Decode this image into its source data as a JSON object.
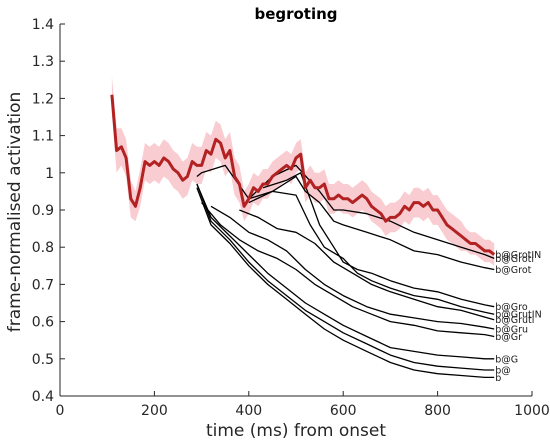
{
  "chart_data": {
    "type": "line",
    "title": "begroting",
    "xlabel": "time (ms) from onset",
    "ylabel": "frame-normalised activation",
    "xlim": [
      0,
      1000
    ],
    "ylim": [
      0.4,
      1.4
    ],
    "xticks": [
      0,
      200,
      400,
      600,
      800,
      1000
    ],
    "yticks": [
      0.4,
      0.5,
      0.6,
      0.7,
      0.8,
      0.9,
      1.0,
      1.1,
      1.2,
      1.3,
      1.4
    ],
    "xtick_labels": [
      "0",
      "200",
      "400",
      "600",
      "800",
      "1000"
    ],
    "ytick_labels": [
      "0.4",
      "0.5",
      "0.6",
      "0.7",
      "0.8",
      "0.9",
      "1",
      "1.1",
      "1.2",
      "1.3",
      "1.4"
    ],
    "grid": false,
    "colors": {
      "target_line": "#b22222",
      "target_band": "#f4a3ac",
      "competitor_lines": "#000000",
      "axes": "#262626"
    },
    "target": {
      "label": "b@GrotIN",
      "x": [
        110,
        120,
        130,
        140,
        150,
        160,
        170,
        180,
        190,
        200,
        210,
        220,
        230,
        240,
        250,
        260,
        270,
        280,
        290,
        300,
        310,
        320,
        330,
        340,
        350,
        360,
        370,
        380,
        390,
        400,
        410,
        420,
        430,
        440,
        450,
        460,
        470,
        480,
        490,
        500,
        510,
        520,
        530,
        540,
        550,
        560,
        570,
        580,
        590,
        600,
        610,
        620,
        630,
        640,
        650,
        660,
        670,
        680,
        690,
        700,
        710,
        720,
        730,
        740,
        750,
        760,
        770,
        780,
        790,
        800,
        810,
        820,
        830,
        840,
        850,
        860,
        870,
        880,
        890,
        900,
        910,
        920
      ],
      "y": [
        1.21,
        1.06,
        1.07,
        1.04,
        0.93,
        0.91,
        0.96,
        1.03,
        1.02,
        1.03,
        1.02,
        1.04,
        1.03,
        1.01,
        1.0,
        0.98,
        0.99,
        1.03,
        1.02,
        1.02,
        1.06,
        1.05,
        1.09,
        1.08,
        1.04,
        1.06,
        0.99,
        0.97,
        0.91,
        0.93,
        0.96,
        0.95,
        0.97,
        0.97,
        0.99,
        1.0,
        1.01,
        1.02,
        1.01,
        1.04,
        1.05,
        0.96,
        0.98,
        0.96,
        0.96,
        0.97,
        0.93,
        0.93,
        0.94,
        0.93,
        0.93,
        0.92,
        0.93,
        0.94,
        0.93,
        0.91,
        0.9,
        0.89,
        0.87,
        0.88,
        0.88,
        0.89,
        0.91,
        0.9,
        0.92,
        0.92,
        0.91,
        0.92,
        0.9,
        0.9,
        0.88,
        0.86,
        0.85,
        0.84,
        0.83,
        0.82,
        0.81,
        0.81,
        0.8,
        0.79,
        0.79,
        0.78
      ],
      "band": [
        0.05,
        0.06,
        0.05,
        0.05,
        0.05,
        0.04,
        0.05,
        0.05,
        0.05,
        0.05,
        0.05,
        0.05,
        0.05,
        0.05,
        0.05,
        0.05,
        0.05,
        0.05,
        0.05,
        0.05,
        0.05,
        0.05,
        0.05,
        0.05,
        0.05,
        0.05,
        0.05,
        0.05,
        0.04,
        0.04,
        0.04,
        0.04,
        0.04,
        0.04,
        0.04,
        0.04,
        0.04,
        0.04,
        0.04,
        0.04,
        0.04,
        0.04,
        0.04,
        0.04,
        0.04,
        0.04,
        0.04,
        0.04,
        0.04,
        0.04,
        0.04,
        0.04,
        0.04,
        0.04,
        0.04,
        0.04,
        0.04,
        0.04,
        0.04,
        0.04,
        0.04,
        0.04,
        0.04,
        0.04,
        0.04,
        0.04,
        0.04,
        0.04,
        0.04,
        0.04,
        0.04,
        0.04,
        0.04,
        0.04,
        0.04,
        0.03,
        0.03,
        0.03,
        0.03,
        0.03,
        0.03,
        0.03
      ]
    },
    "series": [
      {
        "label": "b@Groti",
        "x": [
          290,
          300,
          350,
          400,
          450,
          500,
          550,
          580,
          600,
          650,
          700,
          750,
          800,
          850,
          900,
          920
        ],
        "y": [
          0.99,
          1.0,
          1.02,
          0.93,
          0.99,
          1.02,
          0.95,
          0.9,
          0.9,
          0.89,
          0.87,
          0.84,
          0.82,
          0.8,
          0.78,
          0.77
        ]
      },
      {
        "label": "b@Grot",
        "x": [
          400,
          450,
          500,
          520,
          550,
          580,
          600,
          650,
          700,
          750,
          800,
          850,
          900,
          920
        ],
        "y": [
          0.92,
          0.95,
          0.99,
          0.95,
          0.92,
          0.87,
          0.86,
          0.84,
          0.82,
          0.79,
          0.78,
          0.76,
          0.745,
          0.74
        ]
      },
      {
        "label": "b@Gro",
        "x": [
          430,
          480,
          510,
          550,
          580,
          600,
          630,
          660,
          700,
          750,
          800,
          850,
          900,
          920
        ],
        "y": [
          0.96,
          0.98,
          1.0,
          0.86,
          0.8,
          0.76,
          0.74,
          0.73,
          0.71,
          0.69,
          0.68,
          0.66,
          0.645,
          0.64
        ]
      },
      {
        "label": "b@GrutIN",
        "x": [
          400,
          450,
          500,
          530,
          560,
          600,
          630,
          660,
          700,
          750,
          800,
          850,
          900,
          920
        ],
        "y": [
          0.93,
          0.95,
          0.94,
          0.86,
          0.8,
          0.77,
          0.73,
          0.71,
          0.69,
          0.67,
          0.66,
          0.64,
          0.625,
          0.62
        ]
      },
      {
        "label": "b@Gruti",
        "x": [
          380,
          420,
          460,
          500,
          540,
          580,
          620,
          660,
          700,
          750,
          800,
          850,
          900,
          920
        ],
        "y": [
          0.9,
          0.88,
          0.85,
          0.84,
          0.81,
          0.76,
          0.73,
          0.7,
          0.68,
          0.66,
          0.64,
          0.63,
          0.612,
          0.605
        ]
      },
      {
        "label": "b@Gru",
        "x": [
          320,
          360,
          400,
          440,
          480,
          520,
          560,
          600,
          650,
          700,
          750,
          800,
          850,
          900,
          920
        ],
        "y": [
          0.91,
          0.88,
          0.84,
          0.82,
          0.79,
          0.74,
          0.7,
          0.67,
          0.64,
          0.62,
          0.61,
          0.6,
          0.595,
          0.585,
          0.58
        ]
      },
      {
        "label": "b@Gr",
        "x": [
          300,
          340,
          380,
          420,
          460,
          500,
          540,
          580,
          620,
          660,
          700,
          750,
          800,
          850,
          900,
          920
        ],
        "y": [
          0.92,
          0.86,
          0.82,
          0.79,
          0.77,
          0.74,
          0.7,
          0.67,
          0.64,
          0.62,
          0.6,
          0.59,
          0.575,
          0.57,
          0.565,
          0.56
        ]
      },
      {
        "label": "b@G",
        "x": [
          290,
          320,
          360,
          400,
          440,
          480,
          520,
          560,
          600,
          650,
          700,
          750,
          800,
          850,
          900,
          920
        ],
        "y": [
          0.97,
          0.88,
          0.83,
          0.78,
          0.73,
          0.69,
          0.65,
          0.62,
          0.59,
          0.56,
          0.53,
          0.52,
          0.51,
          0.505,
          0.5,
          0.5
        ]
      },
      {
        "label": "b@",
        "x": [
          290,
          320,
          360,
          400,
          440,
          480,
          520,
          560,
          600,
          650,
          700,
          750,
          800,
          850,
          900,
          920
        ],
        "y": [
          0.97,
          0.87,
          0.82,
          0.76,
          0.71,
          0.67,
          0.63,
          0.6,
          0.57,
          0.54,
          0.51,
          0.49,
          0.48,
          0.475,
          0.47,
          0.47
        ]
      },
      {
        "label": "b",
        "x": [
          290,
          320,
          360,
          400,
          440,
          480,
          520,
          560,
          600,
          650,
          700,
          750,
          800,
          850,
          900,
          920
        ],
        "y": [
          0.96,
          0.86,
          0.81,
          0.75,
          0.7,
          0.66,
          0.62,
          0.58,
          0.55,
          0.52,
          0.49,
          0.47,
          0.46,
          0.455,
          0.45,
          0.45
        ]
      }
    ]
  }
}
